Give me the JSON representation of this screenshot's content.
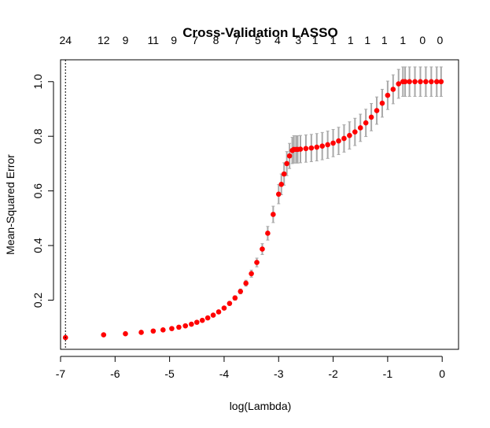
{
  "chart_data": {
    "type": "scatter",
    "title": "Cross-Validation LASSO",
    "xlabel": "log(Lambda)",
    "ylabel": "Mean-Squared Error",
    "xlim": [
      -7.0,
      0.3
    ],
    "ylim": [
      0.02,
      1.08
    ],
    "x_ticks": [
      -7,
      -6,
      -5,
      -4,
      -3,
      -2,
      -1,
      0
    ],
    "y_ticks": [
      0.2,
      0.4,
      0.6,
      0.8,
      1.0
    ],
    "y_tick_labels": [
      "0.2",
      "0.4",
      "0.6",
      "0.8",
      "1.0"
    ],
    "top_axis": {
      "x": [
        -6.91,
        -6.21,
        -5.81,
        -5.3,
        -4.92,
        -4.53,
        -4.15,
        -3.77,
        -3.38,
        -3.02,
        -2.64,
        -2.33,
        -2.0,
        -1.68,
        -1.37,
        -1.06,
        -0.72,
        -0.36,
        -0.04
      ],
      "labels": [
        "24",
        "12",
        "9",
        "11",
        "9",
        "7",
        "8",
        "7",
        "5",
        "4",
        "3",
        "1",
        "1",
        "1",
        "1",
        "1",
        "1",
        "0",
        "0"
      ]
    },
    "selected_lambda_line": -6.91,
    "series": [
      {
        "x": [
          -6.91,
          -6.21,
          -5.81,
          -5.52,
          -5.3,
          -5.12,
          -4.96,
          -4.83,
          -4.71,
          -4.6,
          -4.5,
          -4.4,
          -4.3,
          -4.2,
          -4.1,
          -4.0,
          -3.9,
          -3.8,
          -3.7,
          -3.6,
          -3.5,
          -3.4,
          -3.3,
          -3.2,
          -3.1,
          -3.0,
          -2.95,
          -2.9,
          -2.85,
          -2.8,
          -2.75,
          -2.72,
          -2.68,
          -2.65,
          -2.6,
          -2.5,
          -2.4,
          -2.3,
          -2.2,
          -2.1,
          -2.0,
          -1.9,
          -1.8,
          -1.7,
          -1.6,
          -1.5,
          -1.4,
          -1.3,
          -1.2,
          -1.1,
          -1.0,
          -0.9,
          -0.8,
          -0.72,
          -0.68,
          -0.6,
          -0.5,
          -0.4,
          -0.3,
          -0.2,
          -0.1,
          -0.02
        ],
        "y": [
          0.063,
          0.073,
          0.077,
          0.082,
          0.087,
          0.091,
          0.096,
          0.101,
          0.106,
          0.112,
          0.119,
          0.126,
          0.135,
          0.145,
          0.157,
          0.171,
          0.188,
          0.208,
          0.232,
          0.262,
          0.297,
          0.338,
          0.387,
          0.445,
          0.514,
          0.588,
          0.624,
          0.662,
          0.7,
          0.728,
          0.748,
          0.752,
          0.752,
          0.752,
          0.753,
          0.755,
          0.757,
          0.76,
          0.764,
          0.769,
          0.775,
          0.783,
          0.792,
          0.803,
          0.816,
          0.831,
          0.849,
          0.87,
          0.894,
          0.921,
          0.95,
          0.972,
          0.992,
          1.0,
          1.0,
          1.0,
          1.0,
          1.0,
          1.0,
          1.0,
          1.0,
          1.0
        ],
        "err": [
          0.002,
          0.002,
          0.002,
          0.003,
          0.003,
          0.003,
          0.003,
          0.003,
          0.003,
          0.004,
          0.004,
          0.004,
          0.005,
          0.005,
          0.005,
          0.006,
          0.007,
          0.008,
          0.009,
          0.011,
          0.013,
          0.016,
          0.02,
          0.025,
          0.03,
          0.035,
          0.038,
          0.041,
          0.044,
          0.046,
          0.048,
          0.05,
          0.05,
          0.05,
          0.05,
          0.05,
          0.05,
          0.05,
          0.05,
          0.05,
          0.05,
          0.05,
          0.05,
          0.05,
          0.05,
          0.05,
          0.05,
          0.05,
          0.05,
          0.051,
          0.052,
          0.053,
          0.053,
          0.054,
          0.054,
          0.054,
          0.054,
          0.054,
          0.054,
          0.054,
          0.054,
          0.054
        ],
        "color": "#ff0000",
        "error_color": "#a9a9a9"
      }
    ]
  }
}
